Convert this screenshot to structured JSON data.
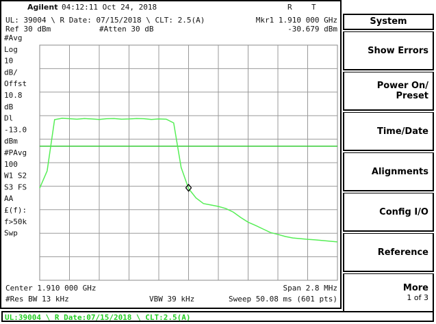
{
  "header": {
    "brand": "Agilent",
    "datetime": "04:12:11  Oct 24, 2018",
    "flags": [
      "R",
      "T"
    ]
  },
  "info": {
    "line1": "UL: 39004 \\ R Date: 07/15/2018 \\ CLT: 2.5(A)",
    "marker_freq": "Mkr1  1.910 000 GHz",
    "ref": "Ref 30 dBm",
    "atten": "#Atten 30 dB",
    "marker_level": {
      "value": -30.679,
      "label": "-30.679 dBm"
    }
  },
  "side_labels": [
    "#Avg",
    "Log",
    "10",
    "dB/",
    "Offst",
    "10.8",
    "dB",
    "Dl",
    "-13.0",
    "dBm",
    "#PAvg",
    "100",
    "W1  S2",
    "S3  FS",
    "AA",
    "£(f):",
    "f>50k",
    "Swp"
  ],
  "plot": {
    "ylim": [
      -70,
      30
    ],
    "display_line": -13,
    "trace": [
      -30.8,
      -23.5,
      -1.7,
      -1.1,
      -1.3,
      -1.5,
      -1.2,
      -1.4,
      -1.6,
      -1.3,
      -1.2,
      -1.5,
      -1.4,
      -1.2,
      -1.3,
      -1.6,
      -1.4,
      -1.5,
      -3.1,
      -22,
      -31,
      -35,
      -37.4,
      -38,
      -38.6,
      -39.5,
      -41,
      -43.3,
      -45.3,
      -46.7,
      -48.2,
      -49.7,
      -50.5,
      -51.4,
      -52,
      -52.3,
      -52.6,
      -52.8,
      -53.1,
      -53.4,
      -53.7
    ],
    "marker_index": 20
  },
  "footer": {
    "center": "Center 1.910 000 GHz",
    "span": "Span 2.8 MHz",
    "rbw": "#Res BW 13 kHz",
    "vbw": "VBW 39 kHz",
    "sweep": "Sweep 50.08 ms (601 pts)"
  },
  "status": "UL:39004 \\ R Date:07/15/2018 \\ CLT:2.5(A)",
  "menu": {
    "title": "System",
    "keys": [
      [
        "Show Errors"
      ],
      [
        "Power On/",
        "Preset"
      ],
      [
        "Time/Date"
      ],
      [
        "Alignments"
      ],
      [
        "Config I/O"
      ],
      [
        "Reference"
      ],
      [
        "More",
        "1 of 3"
      ]
    ]
  }
}
